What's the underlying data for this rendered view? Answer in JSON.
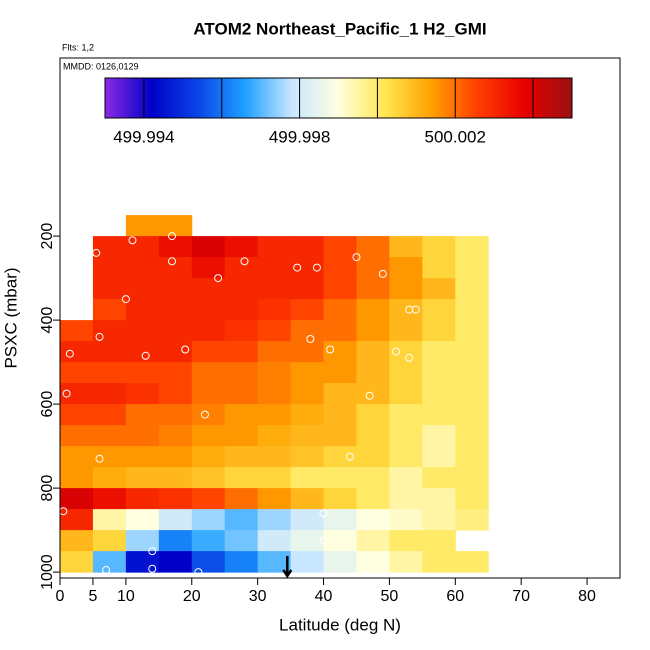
{
  "chart_data": {
    "type": "heatmap",
    "title": "ATOM2 Northeast_Pacific_1 H2_GMI",
    "flights": "Flts: 1,2",
    "dates": "MMDD: 0126,0129",
    "xlabel": "Latitude (deg N)",
    "ylabel": "PSXC (mbar)",
    "xlim": [
      0,
      85
    ],
    "xticks": [
      0,
      5,
      10,
      20,
      30,
      40,
      50,
      60,
      70,
      80
    ],
    "ylim": [
      1014,
      -224
    ],
    "yticks": [
      200,
      400,
      600,
      800,
      1000
    ],
    "lat_edges": [
      0,
      5,
      10,
      15,
      20,
      25,
      30,
      35,
      40,
      45,
      50,
      55,
      60,
      65,
      70
    ],
    "pressure_edges": [
      150,
      200,
      250,
      300,
      350,
      400,
      450,
      500,
      550,
      600,
      650,
      700,
      750,
      800,
      850,
      900,
      950,
      1000
    ],
    "values": [
      [
        null,
        null,
        500.0015,
        500.0015,
        null,
        null,
        null,
        null,
        null,
        null,
        null,
        null,
        null,
        null
      ],
      [
        null,
        500.003,
        500.003,
        500.0035,
        500.004,
        500.0035,
        500.003,
        500.003,
        500.0025,
        500.002,
        500.001,
        500.0005,
        500.0,
        null
      ],
      [
        null,
        500.003,
        500.003,
        500.003,
        500.0035,
        500.003,
        500.003,
        500.003,
        500.0025,
        500.002,
        500.0015,
        500.0005,
        500.0,
        null
      ],
      [
        null,
        500.003,
        500.003,
        500.003,
        500.003,
        500.003,
        500.003,
        500.003,
        500.0025,
        500.002,
        500.0015,
        500.001,
        500.0,
        null
      ],
      [
        null,
        500.0025,
        500.003,
        500.003,
        500.003,
        500.003,
        500.0028,
        500.0025,
        500.002,
        500.0015,
        500.001,
        500.0005,
        500.0,
        null
      ],
      [
        500.0025,
        500.003,
        500.003,
        500.003,
        500.003,
        500.0028,
        500.0025,
        500.002,
        500.002,
        500.0015,
        500.001,
        500.0005,
        500.0,
        null
      ],
      [
        500.003,
        500.003,
        500.003,
        500.003,
        500.0025,
        500.0025,
        500.002,
        500.002,
        500.0015,
        500.001,
        500.0005,
        500.0,
        500.0,
        null
      ],
      [
        500.0025,
        500.0025,
        500.0025,
        500.0025,
        500.002,
        500.002,
        500.0018,
        500.0015,
        500.0015,
        500.001,
        500.0005,
        500.0,
        500.0,
        null
      ],
      [
        500.003,
        500.003,
        500.0028,
        500.0025,
        500.002,
        500.002,
        500.0018,
        500.0015,
        500.001,
        500.001,
        500.0005,
        500.0,
        500.0,
        null
      ],
      [
        500.0025,
        500.0025,
        500.002,
        500.002,
        500.0018,
        500.0015,
        500.0015,
        500.0012,
        500.001,
        500.0005,
        500.0,
        500.0,
        500.0,
        null
      ],
      [
        500.002,
        500.002,
        500.002,
        500.0018,
        500.0015,
        500.0015,
        500.0012,
        500.001,
        500.001,
        500.0005,
        500.0,
        499.9995,
        500.0,
        null
      ],
      [
        500.0015,
        500.0015,
        500.0015,
        500.0015,
        500.0012,
        500.001,
        500.001,
        500.0008,
        500.0005,
        500.0005,
        500.0,
        499.9995,
        500.0,
        null
      ],
      [
        500.0015,
        500.0012,
        500.001,
        500.001,
        500.0008,
        500.0005,
        500.0005,
        500.0,
        500.0,
        500.0,
        499.9995,
        500.0,
        500.0,
        null
      ],
      [
        500.004,
        500.0035,
        500.003,
        500.0028,
        500.0025,
        500.002,
        500.0015,
        500.001,
        500.0005,
        500.0,
        499.9995,
        499.9995,
        500.0,
        null
      ],
      [
        500.003,
        499.9995,
        499.999,
        499.998,
        499.9975,
        499.997,
        499.9975,
        499.998,
        499.9985,
        499.999,
        499.9992,
        499.9995,
        499.9998,
        null
      ],
      [
        500.001,
        500.0005,
        499.9975,
        499.9962,
        499.9968,
        499.9972,
        499.998,
        499.9985,
        499.999,
        499.9995,
        500.0,
        500.0,
        null,
        null
      ],
      [
        500.0005,
        499.997,
        499.9945,
        499.9942,
        499.9955,
        499.9962,
        499.997,
        499.9978,
        499.9985,
        499.999,
        499.9995,
        500.0,
        500.0,
        null
      ]
    ],
    "points": {
      "lat": [
        4,
        5.5,
        3,
        10,
        6,
        1.5,
        13,
        19,
        1,
        6,
        22,
        0.5,
        17,
        11,
        17,
        24,
        28,
        36,
        39,
        45,
        49,
        53,
        54,
        38,
        41,
        47,
        51,
        53,
        44,
        40,
        40,
        14,
        14,
        21,
        7
      ],
      "pressure": [
        240,
        240,
        275,
        350,
        440,
        480,
        485,
        470,
        575,
        730,
        625,
        855,
        260,
        210,
        200,
        300,
        260,
        275,
        275,
        250,
        290,
        375,
        375,
        445,
        470,
        580,
        475,
        490,
        725,
        860,
        925,
        950,
        992,
        1000,
        995
      ]
    },
    "arrow_lat": 34.5,
    "colorlim": [
      499.993,
      500.005
    ],
    "colormap": [
      "#8a2be2",
      "#0000c8",
      "#0a46e6",
      "#1ea0ff",
      "#c8e6ff",
      "#ffffe0",
      "#ffe650",
      "#ffa000",
      "#ff3c00",
      "#e60000",
      "#9b1010"
    ],
    "colorbar_ticks": [
      499.994,
      499.996,
      499.998,
      500.0,
      500.002,
      500.004
    ],
    "colorbar_labels": [
      499.994,
      499.998,
      500.002
    ]
  }
}
